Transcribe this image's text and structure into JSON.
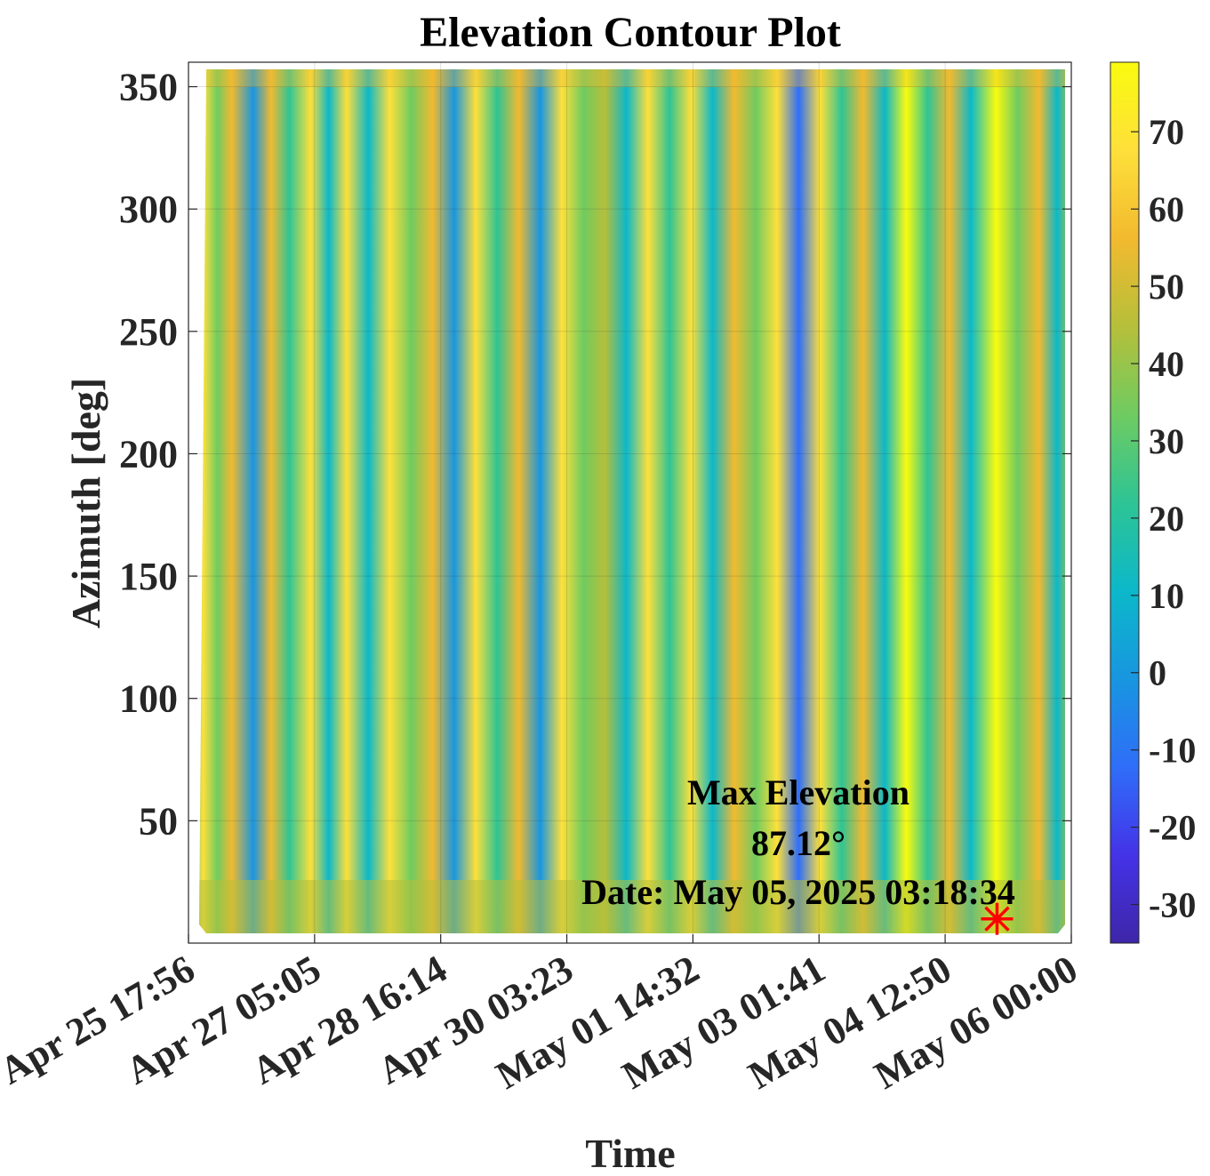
{
  "chart_data": {
    "type": "heatmap",
    "title": "Elevation Contour Plot",
    "xlabel": "Time",
    "ylabel": "Azimuth [deg]",
    "x_tick_labels": [
      "Apr 25 17:56",
      "Apr 27 05:05",
      "Apr 28 16:14",
      "Apr 30 03:23",
      "May 01 14:32",
      "May 03 01:41",
      "May 04 12:50",
      "May 06 00:00"
    ],
    "y_ticks": [
      50,
      100,
      150,
      200,
      250,
      300,
      350
    ],
    "ylim": [
      0,
      360
    ],
    "colorbar": {
      "label": "",
      "ticks": [
        -30,
        -20,
        -10,
        0,
        10,
        20,
        30,
        40,
        50,
        60,
        70
      ],
      "range": [
        -35,
        79
      ]
    },
    "colormap": [
      "#3e26a8",
      "#4433e8",
      "#2f6ef8",
      "#1896e0",
      "#0cb8c9",
      "#2ec495",
      "#6fcb61",
      "#b6bf3a",
      "#f2ba2f",
      "#fee03a",
      "#f9fb0e"
    ],
    "grid": true,
    "annotation": {
      "line1": "Max Elevation",
      "line2": "87.12°",
      "line3": "Date: May 05, 2025 03:18:34",
      "marker_time": "May 05 03:18",
      "marker_azimuth": 7,
      "marker_color": "#ff0000"
    },
    "elevation_bands": [
      {
        "time": "Apr 25 18:00",
        "elevation": 12
      },
      {
        "time": "Apr 25 22:00",
        "elevation": 68
      },
      {
        "time": "Apr 26 02:00",
        "elevation": 30
      },
      {
        "time": "Apr 26 06:00",
        "elevation": 55
      },
      {
        "time": "Apr 26 12:00",
        "elevation": 2
      },
      {
        "time": "Apr 26 17:00",
        "elevation": 60
      },
      {
        "time": "Apr 26 22:00",
        "elevation": 25
      },
      {
        "time": "Apr 27 04:00",
        "elevation": 66
      },
      {
        "time": "Apr 27 09:00",
        "elevation": 15
      },
      {
        "time": "Apr 27 14:00",
        "elevation": 62
      },
      {
        "time": "Apr 27 20:00",
        "elevation": 8
      },
      {
        "time": "Apr 28 02:00",
        "elevation": 70
      },
      {
        "time": "Apr 28 08:00",
        "elevation": 35
      },
      {
        "time": "Apr 28 14:00",
        "elevation": 58
      },
      {
        "time": "Apr 28 20:00",
        "elevation": 0
      },
      {
        "time": "Apr 29 02:00",
        "elevation": 64
      },
      {
        "time": "Apr 29 08:00",
        "elevation": 20
      },
      {
        "time": "Apr 29 14:00",
        "elevation": 60
      },
      {
        "time": "Apr 29 20:00",
        "elevation": -5
      },
      {
        "time": "Apr 30 02:00",
        "elevation": 72
      },
      {
        "time": "Apr 30 08:00",
        "elevation": 28
      },
      {
        "time": "Apr 30 14:00",
        "elevation": 45
      },
      {
        "time": "Apr 30 20:00",
        "elevation": 10
      },
      {
        "time": "May 01 02:00",
        "elevation": 65
      },
      {
        "time": "May 01 08:00",
        "elevation": 22
      },
      {
        "time": "May 01 14:00",
        "elevation": 68
      },
      {
        "time": "May 01 20:00",
        "elevation": 5
      },
      {
        "time": "May 02 02:00",
        "elevation": 60
      },
      {
        "time": "May 02 08:00",
        "elevation": 32
      },
      {
        "time": "May 02 14:00",
        "elevation": 66
      },
      {
        "time": "May 02 20:00",
        "elevation": -8
      },
      {
        "time": "May 03 02:00",
        "elevation": 62
      },
      {
        "time": "May 03 08:00",
        "elevation": 25
      },
      {
        "time": "May 03 14:00",
        "elevation": 58
      },
      {
        "time": "May 03 20:00",
        "elevation": 12
      },
      {
        "time": "May 04 02:00",
        "elevation": 74
      },
      {
        "time": "May 04 08:00",
        "elevation": 18
      },
      {
        "time": "May 04 14:00",
        "elevation": 55
      },
      {
        "time": "May 04 20:00",
        "elevation": 6
      },
      {
        "time": "May 05 03:00",
        "elevation": 87
      },
      {
        "time": "May 05 09:00",
        "elevation": 30
      },
      {
        "time": "May 05 15:00",
        "elevation": 60
      },
      {
        "time": "May 05 20:00",
        "elevation": 15
      },
      {
        "time": "May 06 00:00",
        "elevation": 40
      }
    ]
  }
}
